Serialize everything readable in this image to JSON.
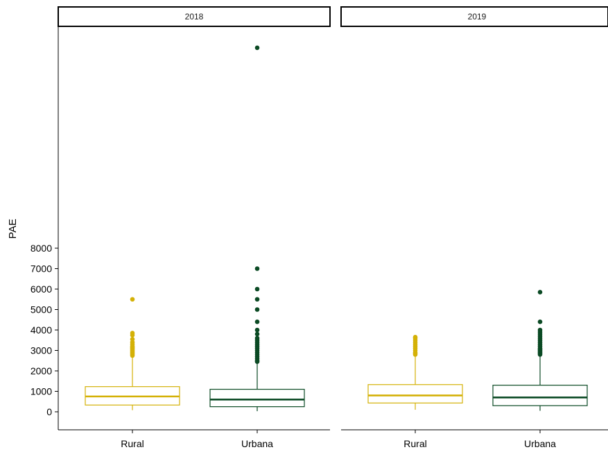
{
  "chart_data": {
    "type": "boxplot",
    "ylabel": "PAE",
    "xlabel": "",
    "yticks": [
      0,
      1000,
      2000,
      3000,
      4000,
      5000,
      6000,
      7000,
      8000
    ],
    "ylim": [
      -1000,
      18000
    ],
    "legend": "none",
    "grid": false,
    "categories": [
      "Rural",
      "Urbana"
    ],
    "colors": {
      "Rural": "#d4b106",
      "Urbana": "#0b4a24"
    },
    "facets": [
      {
        "label": "2018",
        "boxes": [
          {
            "category": "Rural",
            "whisker_low": 80,
            "q1": 330,
            "median": 750,
            "q3": 1230,
            "whisker_high": 2700,
            "outliers": [
              2750,
              2800,
              2850,
              2900,
              2950,
              3000,
              3050,
              3100,
              3150,
              3200,
              3300,
              3400,
              3550,
              3750,
              3850,
              5500
            ]
          },
          {
            "category": "Urbana",
            "whisker_low": 30,
            "q1": 250,
            "median": 600,
            "q3": 1100,
            "whisker_high": 2400,
            "outliers": [
              2450,
              2500,
              2600,
              2700,
              2800,
              2900,
              3000,
              3100,
              3200,
              3300,
              3400,
              3500,
              3600,
              3800,
              4000,
              4400,
              5000,
              5500,
              6000,
              7000,
              17800
            ]
          }
        ]
      },
      {
        "label": "2019",
        "boxes": [
          {
            "category": "Rural",
            "whisker_low": 100,
            "q1": 430,
            "median": 800,
            "q3": 1330,
            "whisker_high": 2750,
            "outliers": [
              2800,
              2850,
              2900,
              3000,
              3100,
              3200,
              3300,
              3400,
              3500,
              3600,
              3650
            ]
          },
          {
            "category": "Urbana",
            "whisker_low": 50,
            "q1": 300,
            "median": 700,
            "q3": 1300,
            "whisker_high": 2750,
            "outliers": [
              2800,
              2850,
              2900,
              2950,
              3000,
              3050,
              3100,
              3200,
              3300,
              3400,
              3500,
              3600,
              3700,
              3800,
              3900,
              4000,
              4400,
              5850
            ]
          }
        ]
      }
    ]
  }
}
